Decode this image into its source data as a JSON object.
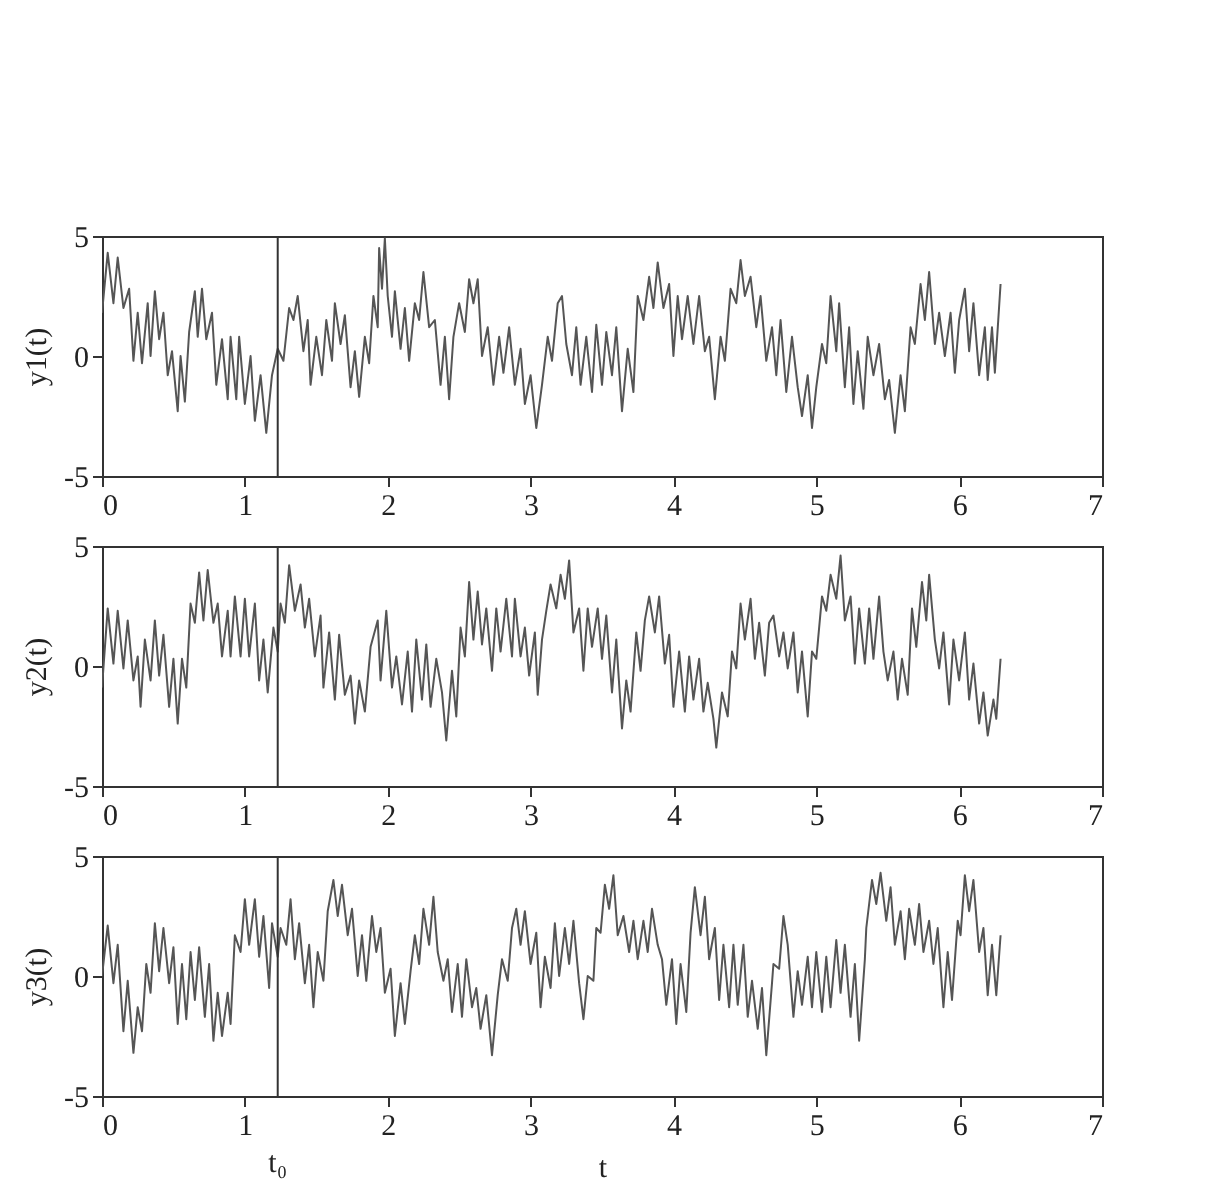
{
  "chart_data": [
    {
      "type": "line",
      "ylabel": "y1(t)",
      "xlim": [
        0,
        7
      ],
      "xticks": [
        0,
        1,
        2,
        3,
        4,
        5,
        6,
        7
      ],
      "ylim": [
        -5,
        5
      ],
      "yticks": [
        -5,
        0,
        5
      ],
      "grid": false,
      "ref_lines": [
        {
          "axis": "x",
          "value": 1.23,
          "color": "#333333"
        }
      ],
      "series": [
        {
          "color": "#555555",
          "x": [
            0,
            0.04,
            0.08,
            0.11,
            0.15,
            0.19,
            0.22,
            0.25,
            0.28,
            0.32,
            0.34,
            0.37,
            0.4,
            0.43,
            0.46,
            0.49,
            0.53,
            0.55,
            0.58,
            0.61,
            0.65,
            0.67,
            0.7,
            0.73,
            0.77,
            0.8,
            0.84,
            0.88,
            0.9,
            0.94,
            0.96,
            1.0,
            1.04,
            1.07,
            1.11,
            1.15,
            1.19,
            1.23,
            1.27,
            1.31,
            1.34,
            1.37,
            1.41,
            1.44,
            1.46,
            1.5,
            1.54,
            1.57,
            1.61,
            1.63,
            1.67,
            1.7,
            1.74,
            1.77,
            1.8,
            1.84,
            1.87,
            1.9,
            1.93,
            1.94,
            1.96,
            1.98,
            2.0,
            2.03,
            2.05,
            2.09,
            2.12,
            2.15,
            2.19,
            2.22,
            2.25,
            2.29,
            2.33,
            2.37,
            2.4,
            2.43,
            2.46,
            2.5,
            2.54,
            2.57,
            2.6,
            2.63,
            2.66,
            2.7,
            2.74,
            2.78,
            2.81,
            2.85,
            2.89,
            2.93,
            2.96,
            3.0,
            3.04,
            3.08,
            3.12,
            3.15,
            3.19,
            3.22,
            3.25,
            3.29,
            3.32,
            3.35,
            3.39,
            3.43,
            3.46,
            3.5,
            3.53,
            3.57,
            3.6,
            3.64,
            3.68,
            3.72,
            3.75,
            3.79,
            3.83,
            3.86,
            3.89,
            3.93,
            3.97,
            4.0,
            4.03,
            4.06,
            4.1,
            4.14,
            4.18,
            4.22,
            4.25,
            4.29,
            4.33,
            4.36,
            4.4,
            4.44,
            4.47,
            4.5,
            4.54,
            4.58,
            4.61,
            4.65,
            4.69,
            4.72,
            4.75,
            4.79,
            4.83,
            4.87,
            4.9,
            4.94,
            4.97,
            5.0,
            5.04,
            5.07,
            5.1,
            5.14,
            5.16,
            5.2,
            5.23,
            5.26,
            5.29,
            5.33,
            5.36,
            5.4,
            5.44,
            5.48,
            5.51,
            5.55,
            5.59,
            5.62,
            5.66,
            5.69,
            5.73,
            5.76,
            5.79,
            5.83,
            5.86,
            5.9,
            5.94,
            5.97,
            6.0,
            6.04,
            6.07,
            6.1,
            6.14,
            6.18,
            6.2,
            6.23,
            6.25,
            6.29
          ],
          "values": [
            1.8,
            4.3,
            2.2,
            4.1,
            2.0,
            2.8,
            -0.2,
            1.8,
            -0.3,
            2.2,
            0,
            2.7,
            0.7,
            1.8,
            -0.8,
            0.2,
            -2.3,
            0,
            -1.9,
            1,
            2.7,
            0.8,
            2.8,
            0.7,
            1.8,
            -1.2,
            0.7,
            -1.8,
            0.8,
            -1.8,
            0.8,
            -2,
            0,
            -2.7,
            -0.8,
            -3.2,
            -0.8,
            0.3,
            -0.2,
            2,
            1.5,
            2.5,
            0.2,
            1.5,
            -1.2,
            0.8,
            -0.8,
            1.5,
            -0.2,
            2.2,
            0.5,
            1.7,
            -1.3,
            0.2,
            -1.7,
            0.8,
            -0.3,
            2.5,
            1.2,
            4.5,
            2.8,
            4.9,
            2.5,
            0.8,
            2.7,
            0.3,
            2,
            -0.2,
            2.2,
            1.5,
            3.5,
            1.2,
            1.5,
            -1.2,
            0.8,
            -1.8,
            0.8,
            2.2,
            1,
            3.2,
            2.2,
            3.2,
            0,
            1.2,
            -1.2,
            0.8,
            -0.7,
            1.2,
            -1.2,
            0.3,
            -2,
            -0.8,
            -3,
            -1.2,
            0.8,
            -0.2,
            2.2,
            2.5,
            0.5,
            -0.8,
            1.2,
            -1.2,
            0.8,
            -1.5,
            1.3,
            -1.2,
            1,
            -0.8,
            1.2,
            -2.3,
            0.3,
            -1.5,
            2.5,
            1.5,
            3.3,
            2,
            3.9,
            2,
            3,
            0,
            2.5,
            0.7,
            2.5,
            0.5,
            2.5,
            0.2,
            0.8,
            -1.8,
            0.8,
            -0.2,
            2.8,
            2.2,
            4,
            2.5,
            3.3,
            1.2,
            2.5,
            -0.2,
            1.2,
            -0.8,
            1.5,
            -1.5,
            0.8,
            -1.3,
            -2.5,
            -0.8,
            -3,
            -1.3,
            0.5,
            -0.3,
            2.5,
            0.2,
            2.2,
            -1.3,
            1.2,
            -2,
            0.2,
            -2.2,
            0.8,
            -0.8,
            0.5,
            -1.8,
            -1,
            -3.2,
            -0.8,
            -2.3,
            1.2,
            0.5,
            3,
            1.5,
            3.5,
            0.5,
            1.8,
            0,
            1.8,
            -0.7,
            1.5,
            2.8,
            0.2,
            2.2,
            -0.8,
            1.2,
            -1,
            1.2,
            -0.7,
            3
          ]
        }
      ]
    },
    {
      "type": "line",
      "ylabel": "y2(t)",
      "xlim": [
        0,
        7
      ],
      "xticks": [
        0,
        1,
        2,
        3,
        4,
        5,
        6,
        7
      ],
      "ylim": [
        -5,
        5
      ],
      "yticks": [
        -5,
        0,
        5
      ],
      "grid": false,
      "ref_lines": [
        {
          "axis": "x",
          "value": 1.23,
          "color": "#333333"
        }
      ],
      "series": [
        {
          "color": "#555555",
          "x": [
            0,
            0.04,
            0.08,
            0.11,
            0.15,
            0.18,
            0.22,
            0.25,
            0.27,
            0.3,
            0.34,
            0.37,
            0.4,
            0.43,
            0.47,
            0.5,
            0.53,
            0.56,
            0.59,
            0.62,
            0.65,
            0.68,
            0.71,
            0.74,
            0.78,
            0.81,
            0.84,
            0.88,
            0.9,
            0.93,
            0.97,
            1.0,
            1.03,
            1.07,
            1.1,
            1.13,
            1.16,
            1.2,
            1.23,
            1.25,
            1.28,
            1.31,
            1.35,
            1.39,
            1.42,
            1.45,
            1.49,
            1.53,
            1.55,
            1.59,
            1.63,
            1.66,
            1.7,
            1.74,
            1.77,
            1.8,
            1.84,
            1.88,
            1.93,
            1.95,
            1.99,
            2.03,
            2.06,
            2.1,
            2.14,
            2.17,
            2.2,
            2.24,
            2.27,
            2.3,
            2.34,
            2.38,
            2.41,
            2.45,
            2.48,
            2.51,
            2.54,
            2.57,
            2.6,
            2.63,
            2.66,
            2.69,
            2.73,
            2.76,
            2.79,
            2.83,
            2.87,
            2.89,
            2.93,
            2.96,
            2.99,
            3.03,
            3.05,
            3.08,
            3.11,
            3.14,
            3.18,
            3.21,
            3.24,
            3.27,
            3.3,
            3.34,
            3.37,
            3.4,
            3.43,
            3.47,
            3.5,
            3.53,
            3.57,
            3.6,
            3.64,
            3.67,
            3.7,
            3.74,
            3.77,
            3.8,
            3.83,
            3.87,
            3.9,
            3.94,
            3.97,
            4.0,
            4.04,
            4.08,
            4.11,
            4.14,
            4.18,
            4.21,
            4.24,
            4.28,
            4.3,
            4.34,
            4.38,
            4.41,
            4.44,
            4.47,
            4.5,
            4.54,
            4.57,
            4.6,
            4.64,
            4.67,
            4.7,
            4.74,
            4.77,
            4.8,
            4.84,
            4.87,
            4.9,
            4.94,
            4.97,
            5.0,
            5.04,
            5.07,
            5.1,
            5.14,
            5.17,
            5.2,
            5.24,
            5.27,
            5.3,
            5.34,
            5.37,
            5.4,
            5.44,
            5.47,
            5.5,
            5.54,
            5.57,
            5.6,
            5.64,
            5.67,
            5.7,
            5.74,
            5.77,
            5.79,
            5.83,
            5.86,
            5.89,
            5.93,
            5.96,
            6.0,
            6.04,
            6.07,
            6.1,
            6.14,
            6.17,
            6.2,
            6.24,
            6.26,
            6.29
          ],
          "values": [
            -0.9,
            2.4,
            0.1,
            2.3,
            -0.1,
            1.9,
            -0.6,
            0.4,
            -1.7,
            1.1,
            -0.6,
            1.9,
            -0.4,
            1.3,
            -1.7,
            0.3,
            -2.4,
            0.3,
            -0.9,
            2.6,
            1.8,
            3.9,
            1.9,
            4,
            1.8,
            2.6,
            0.4,
            2.3,
            0.4,
            2.9,
            0.4,
            2.8,
            0.4,
            2.6,
            -0.6,
            1.1,
            -1.1,
            1.6,
            0.6,
            2.6,
            1.8,
            4.2,
            2.3,
            3.4,
            1.6,
            2.8,
            0.4,
            2.1,
            -0.9,
            1.4,
            -1.4,
            1.3,
            -1.2,
            -0.4,
            -2.4,
            -0.6,
            -1.9,
            0.8,
            1.9,
            -0.6,
            2.3,
            -0.9,
            0.4,
            -1.6,
            0.6,
            -1.9,
            1.1,
            -1.4,
            0.9,
            -1.7,
            0.3,
            -1.1,
            -3.1,
            -0.2,
            -2.1,
            1.6,
            0.4,
            3.5,
            1.1,
            3.1,
            0.9,
            2.4,
            -0.2,
            2.4,
            0.6,
            2.8,
            0.4,
            2.8,
            0.4,
            1.6,
            -0.4,
            1.4,
            -1.2,
            1.1,
            2.3,
            3.4,
            2.4,
            3.8,
            2.8,
            4.4,
            1.4,
            2.4,
            -0.2,
            2.4,
            0.8,
            2.4,
            0.3,
            2.1,
            -1.1,
            1.1,
            -2.6,
            -0.6,
            -1.9,
            1.4,
            -0.2,
            1.9,
            2.9,
            1.4,
            2.9,
            0.1,
            1.3,
            -1.7,
            0.6,
            -1.9,
            0.4,
            -1.4,
            0.3,
            -1.9,
            -0.7,
            -2.2,
            -3.4,
            -1.1,
            -2.1,
            0.6,
            -0.1,
            2.6,
            1.1,
            2.8,
            0.3,
            1.8,
            -0.4,
            1.8,
            2.1,
            0.4,
            1.4,
            -0.1,
            1.4,
            -1.1,
            0.6,
            -2.1,
            0.6,
            0.3,
            2.9,
            2.3,
            3.8,
            2.8,
            4.6,
            1.9,
            2.9,
            0.1,
            2.4,
            0.1,
            2.4,
            0.3,
            2.9,
            0.6,
            -0.6,
            0.6,
            -1.4,
            0.3,
            -1.2,
            2.4,
            0.8,
            3.5,
            1.9,
            3.8,
            1.1,
            -0.1,
            1.4,
            -1.6,
            1.1,
            -0.6,
            1.4,
            -1.4,
            0.1,
            -2.4,
            -1.1,
            -2.9,
            -1.4,
            -2.2,
            0.3
          ]
        }
      ]
    },
    {
      "type": "line",
      "ylabel": "y3(t)",
      "xlabel": "t",
      "xlim": [
        0,
        7
      ],
      "xticks": [
        0,
        1,
        2,
        3,
        4,
        5,
        6,
        7
      ],
      "ylim": [
        -5,
        5
      ],
      "yticks": [
        -5,
        0,
        5
      ],
      "grid": false,
      "ref_lines": [
        {
          "axis": "x",
          "value": 1.23,
          "label": "t₀",
          "color": "#333333"
        }
      ],
      "series": [
        {
          "color": "#555555",
          "x": [
            0,
            0.04,
            0.08,
            0.11,
            0.15,
            0.18,
            0.22,
            0.25,
            0.28,
            0.31,
            0.34,
            0.37,
            0.4,
            0.43,
            0.47,
            0.5,
            0.53,
            0.56,
            0.59,
            0.62,
            0.65,
            0.68,
            0.72,
            0.75,
            0.78,
            0.81,
            0.84,
            0.88,
            0.9,
            0.93,
            0.97,
            1.0,
            1.03,
            1.07,
            1.1,
            1.13,
            1.17,
            1.19,
            1.23,
            1.25,
            1.29,
            1.32,
            1.35,
            1.38,
            1.42,
            1.45,
            1.48,
            1.51,
            1.55,
            1.58,
            1.62,
            1.65,
            1.68,
            1.72,
            1.75,
            1.79,
            1.82,
            1.85,
            1.89,
            1.92,
            1.95,
            1.98,
            2.02,
            2.05,
            2.09,
            2.12,
            2.16,
            2.19,
            2.22,
            2.25,
            2.29,
            2.32,
            2.35,
            2.39,
            2.42,
            2.45,
            2.49,
            2.52,
            2.55,
            2.59,
            2.62,
            2.65,
            2.69,
            2.73,
            2.77,
            2.8,
            2.84,
            2.87,
            2.9,
            2.93,
            2.96,
            3.0,
            3.04,
            3.07,
            3.1,
            3.14,
            3.17,
            3.2,
            3.24,
            3.27,
            3.3,
            3.34,
            3.37,
            3.4,
            3.44,
            3.46,
            3.49,
            3.52,
            3.55,
            3.58,
            3.61,
            3.65,
            3.69,
            3.72,
            3.75,
            3.79,
            3.82,
            3.85,
            3.89,
            3.92,
            3.95,
            3.99,
            4.02,
            4.05,
            4.09,
            4.12,
            4.15,
            4.19,
            4.22,
            4.25,
            4.29,
            4.32,
            4.35,
            4.39,
            4.42,
            4.45,
            4.49,
            4.52,
            4.55,
            4.59,
            4.62,
            4.65,
            4.69,
            4.7,
            4.74,
            4.77,
            4.8,
            4.84,
            4.87,
            4.9,
            4.94,
            4.97,
            5.0,
            5.04,
            5.07,
            5.1,
            5.14,
            5.17,
            5.2,
            5.24,
            5.27,
            5.3,
            5.34,
            5.35,
            5.39,
            5.42,
            5.45,
            5.49,
            5.52,
            5.55,
            5.59,
            5.62,
            5.65,
            5.69,
            5.72,
            5.75,
            5.79,
            5.82,
            5.85,
            5.89,
            5.92,
            5.95,
            5.99,
            6.01,
            6.04,
            6.07,
            6.1,
            6.14,
            6.17,
            6.2,
            6.23,
            6.26,
            6.29
          ],
          "values": [
            0,
            2.1,
            -0.3,
            1.3,
            -2.3,
            -0.2,
            -3.2,
            -1.3,
            -2.3,
            0.5,
            -0.7,
            2.2,
            0.2,
            2,
            -0.3,
            1.2,
            -2,
            0.5,
            -1.8,
            1,
            -1,
            1.2,
            -1.7,
            0.5,
            -2.7,
            -0.7,
            -2.5,
            -0.7,
            -2,
            1.7,
            1,
            3.2,
            1.3,
            3.2,
            0.8,
            2.5,
            -0.5,
            2.2,
            0.8,
            2,
            1.3,
            3.2,
            0.7,
            2.2,
            -0.3,
            1.3,
            -1.3,
            1,
            -0.2,
            2.7,
            4,
            2.5,
            3.8,
            1.7,
            2.8,
            0,
            1.7,
            -0.2,
            2.5,
            1,
            2,
            -0.7,
            0.3,
            -2.5,
            -0.3,
            -2,
            0.2,
            1.7,
            0.5,
            2.8,
            1.3,
            3.3,
            1,
            -0.2,
            0.7,
            -1.5,
            0.5,
            -1.7,
            0.7,
            -1.3,
            -0.5,
            -2.2,
            -0.8,
            -3.3,
            -0.8,
            0.7,
            -0.2,
            2,
            2.8,
            1.3,
            2.7,
            0.5,
            1.8,
            -1.3,
            0.8,
            -0.5,
            2.2,
            0,
            2,
            0.5,
            2.3,
            -0.3,
            -1.8,
            0,
            -0.2,
            2,
            1.8,
            3.8,
            2.8,
            4.2,
            1.7,
            2.5,
            1,
            2.3,
            0.7,
            2.3,
            1,
            2.8,
            1.3,
            0.7,
            -1.2,
            0.7,
            -2,
            0.5,
            -1.5,
            1.8,
            3.7,
            1.7,
            3.3,
            0.7,
            2,
            -1,
            1.3,
            -1.3,
            1.3,
            -1.2,
            1.3,
            -1.7,
            -0.2,
            -2.2,
            -0.5,
            -3.3,
            -0.3,
            0.5,
            0.3,
            2.5,
            1.3,
            -1.7,
            0.2,
            -1.2,
            0.8,
            -1.3,
            1,
            -1.5,
            0.8,
            -1.3,
            1.5,
            -0.7,
            1.3,
            -1.7,
            0.5,
            -2.7,
            0.7,
            2,
            4,
            3,
            4.3,
            2.3,
            3.7,
            1.3,
            2.7,
            0.7,
            2.8,
            1.3,
            3,
            1,
            2.3,
            0.5,
            2,
            -1.3,
            1,
            -1,
            2.3,
            1.7,
            4.2,
            2.7,
            4,
            1,
            2,
            -0.8,
            1.3,
            -0.8,
            1.7
          ]
        }
      ]
    }
  ]
}
